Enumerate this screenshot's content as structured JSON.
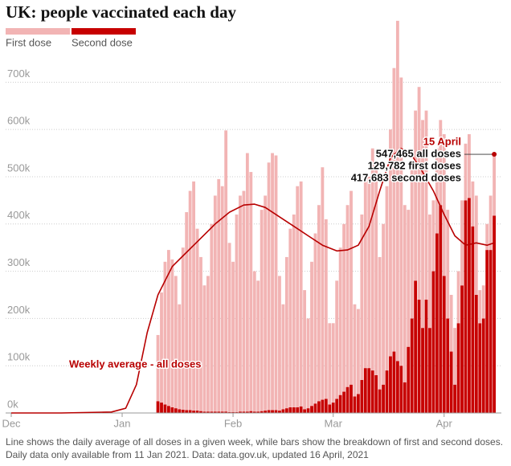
{
  "chart_data": {
    "type": "bar",
    "title": "UK: people vaccinated each day",
    "x": [
      "2021-01-11",
      "2021-01-12",
      "2021-01-13",
      "2021-01-14",
      "2021-01-15",
      "2021-01-16",
      "2021-01-17",
      "2021-01-18",
      "2021-01-19",
      "2021-01-20",
      "2021-01-21",
      "2021-01-22",
      "2021-01-23",
      "2021-01-24",
      "2021-01-25",
      "2021-01-26",
      "2021-01-27",
      "2021-01-28",
      "2021-01-29",
      "2021-01-30",
      "2021-01-31",
      "2021-02-01",
      "2021-02-02",
      "2021-02-03",
      "2021-02-04",
      "2021-02-05",
      "2021-02-06",
      "2021-02-07",
      "2021-02-08",
      "2021-02-09",
      "2021-02-10",
      "2021-02-11",
      "2021-02-12",
      "2021-02-13",
      "2021-02-14",
      "2021-02-15",
      "2021-02-16",
      "2021-02-17",
      "2021-02-18",
      "2021-02-19",
      "2021-02-20",
      "2021-02-21",
      "2021-02-22",
      "2021-02-23",
      "2021-02-24",
      "2021-02-25",
      "2021-02-26",
      "2021-02-27",
      "2021-02-28",
      "2021-03-01",
      "2021-03-02",
      "2021-03-03",
      "2021-03-04",
      "2021-03-05",
      "2021-03-06",
      "2021-03-07",
      "2021-03-08",
      "2021-03-09",
      "2021-03-10",
      "2021-03-11",
      "2021-03-12",
      "2021-03-13",
      "2021-03-14",
      "2021-03-15",
      "2021-03-16",
      "2021-03-17",
      "2021-03-18",
      "2021-03-19",
      "2021-03-20",
      "2021-03-21",
      "2021-03-22",
      "2021-03-23",
      "2021-03-24",
      "2021-03-25",
      "2021-03-26",
      "2021-03-27",
      "2021-03-28",
      "2021-03-29",
      "2021-03-30",
      "2021-03-31",
      "2021-04-01",
      "2021-04-02",
      "2021-04-03",
      "2021-04-04",
      "2021-04-05",
      "2021-04-06",
      "2021-04-07",
      "2021-04-08",
      "2021-04-09",
      "2021-04-10",
      "2021-04-11",
      "2021-04-12",
      "2021-04-13",
      "2021-04-14",
      "2021-04-15"
    ],
    "series": [
      {
        "name": "First dose",
        "color": "#f2b4b4",
        "values": [
          140000,
          233000,
          302000,
          330000,
          313000,
          280000,
          222000,
          343000,
          419000,
          464000,
          485000,
          385000,
          326000,
          267000,
          287000,
          397000,
          457000,
          492000,
          477000,
          595000,
          358000,
          318000,
          418000,
          457000,
          467000,
          547000,
          506000,
          297000,
          277000,
          426000,
          455000,
          524000,
          544000,
          539000,
          285000,
          222000,
          320000,
          378000,
          408000,
          468000,
          476000,
          252000,
          190000,
          305000,
          360000,
          415000,
          492000,
          380000,
          172000,
          168000,
          250000,
          312000,
          355000,
          385000,
          410000,
          195000,
          180000,
          350000,
          395000,
          405000,
          470000,
          440000,
          280000,
          340000,
          390000,
          480000,
          600000,
          720000,
          610000,
          375000,
          290000,
          320000,
          360000,
          450000,
          440000,
          400000,
          240000,
          150000,
          180000,
          180000,
          300000,
          230000,
          120000,
          120000,
          110000,
          180000,
          120000,
          135000,
          95000,
          210000,
          70000,
          70000,
          55000,
          115000,
          129782
        ]
      },
      {
        "name": "Second dose",
        "color": "#c70000",
        "values": [
          25000,
          22000,
          18000,
          15000,
          12000,
          10000,
          8000,
          7000,
          6000,
          6000,
          5000,
          5000,
          4000,
          3000,
          3000,
          3000,
          3000,
          3000,
          3000,
          3000,
          2000,
          2000,
          2000,
          3000,
          3000,
          3000,
          4000,
          3000,
          3000,
          4000,
          5000,
          6000,
          6000,
          6000,
          5000,
          8000,
          10000,
          12000,
          12000,
          12000,
          14000,
          8000,
          10000,
          15000,
          20000,
          25000,
          28000,
          30000,
          18000,
          22000,
          30000,
          38000,
          45000,
          55000,
          60000,
          35000,
          40000,
          70000,
          95000,
          95000,
          90000,
          80000,
          50000,
          60000,
          90000,
          120000,
          130000,
          110000,
          100000,
          65000,
          140000,
          200000,
          280000,
          240000,
          180000,
          240000,
          180000,
          300000,
          380000,
          440000,
          290000,
          200000,
          130000,
          60000,
          190000,
          270000,
          450000,
          455000,
          395000,
          250000,
          190000,
          200000,
          345000,
          345000,
          417683
        ]
      },
      {
        "name": "Weekly average - all doses",
        "type": "line",
        "color": "#b80000",
        "x": [
          "2020-12-01",
          "2020-12-15",
          "2020-12-29",
          "2021-01-02",
          "2021-01-05",
          "2021-01-08",
          "2021-01-11",
          "2021-01-15",
          "2021-01-19",
          "2021-01-23",
          "2021-01-27",
          "2021-01-31",
          "2021-02-04",
          "2021-02-07",
          "2021-02-10",
          "2021-02-14",
          "2021-02-18",
          "2021-02-22",
          "2021-02-26",
          "2021-03-02",
          "2021-03-05",
          "2021-03-08",
          "2021-03-11",
          "2021-03-14",
          "2021-03-17",
          "2021-03-20",
          "2021-03-23",
          "2021-03-26",
          "2021-03-29",
          "2021-04-01",
          "2021-04-04",
          "2021-04-07",
          "2021-04-10",
          "2021-04-13",
          "2021-04-15"
        ],
        "values": [
          0,
          0,
          2000,
          10000,
          60000,
          170000,
          250000,
          310000,
          340000,
          370000,
          400000,
          425000,
          440000,
          442000,
          435000,
          415000,
          395000,
          375000,
          355000,
          343000,
          345000,
          355000,
          395000,
          470000,
          540000,
          560000,
          545000,
          510000,
          470000,
          420000,
          375000,
          355000,
          360000,
          355000,
          360000
        ]
      }
    ],
    "xlim": [
      "2020-12-01",
      "2021-04-17"
    ],
    "xticks": [
      {
        "value": "2020-12-01",
        "label": "Dec"
      },
      {
        "value": "2021-01-01",
        "label": "Jan"
      },
      {
        "value": "2021-02-01",
        "label": "Feb"
      },
      {
        "value": "2021-03-01",
        "label": "Mar"
      },
      {
        "value": "2021-04-01",
        "label": "Apr"
      }
    ],
    "ylim": [
      0,
      840000
    ],
    "yticks": [
      {
        "value": 0,
        "label": "0k"
      },
      {
        "value": 100000,
        "label": "100k"
      },
      {
        "value": 200000,
        "label": "200k"
      },
      {
        "value": 300000,
        "label": "300k"
      },
      {
        "value": 400000,
        "label": "400k"
      },
      {
        "value": 500000,
        "label": "500k"
      },
      {
        "value": 600000,
        "label": "600k"
      },
      {
        "value": 700000,
        "label": "700k"
      }
    ],
    "grid": true,
    "annotation": {
      "date": "15 April",
      "lines": [
        "547,465 all doses",
        "129,782 first doses",
        "417,683 second doses"
      ]
    },
    "note": [
      "Line shows the daily average of all doses in a given week, while bars show the breakdown of first and second doses.",
      "Daily data only available from 11 Jan 2021. Data: data.gov.uk, updated 16 April, 2021"
    ]
  }
}
